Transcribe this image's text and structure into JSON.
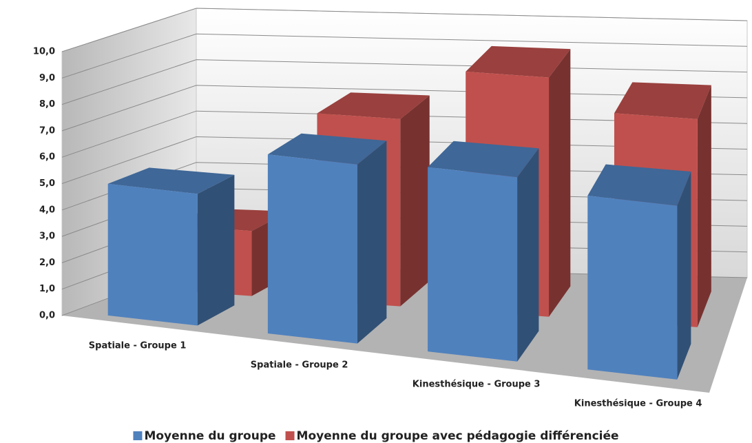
{
  "chart_data": {
    "type": "bar3d",
    "categories": [
      "Spatiale - Groupe 1",
      "Spatiale - Groupe 2",
      "Kinesthésique - Groupe 3",
      "Kinesthésique - Groupe 4"
    ],
    "series": [
      {
        "name": "Moyenne du groupe",
        "color": "#4f81bd",
        "values": [
          5.0,
          6.8,
          7.0,
          6.6
        ]
      },
      {
        "name": "Moyenne du groupe avec pédagogie différenciée",
        "color": "#c0504d",
        "values": [
          2.5,
          7.2,
          9.2,
          8.0
        ]
      }
    ],
    "ylim": [
      0,
      10
    ],
    "yticks": [
      {
        "value": 0,
        "label": "0,0"
      },
      {
        "value": 1,
        "label": "1,0"
      },
      {
        "value": 2,
        "label": "2,0"
      },
      {
        "value": 3,
        "label": "3,0"
      },
      {
        "value": 4,
        "label": "4,0"
      },
      {
        "value": 5,
        "label": "5,0"
      },
      {
        "value": 6,
        "label": "6,0"
      },
      {
        "value": 7,
        "label": "7,0"
      },
      {
        "value": 8,
        "label": "8,0"
      },
      {
        "value": 9,
        "label": "9,0"
      },
      {
        "value": 10,
        "label": "10,0"
      }
    ],
    "grid": true,
    "legend": "bottom"
  }
}
